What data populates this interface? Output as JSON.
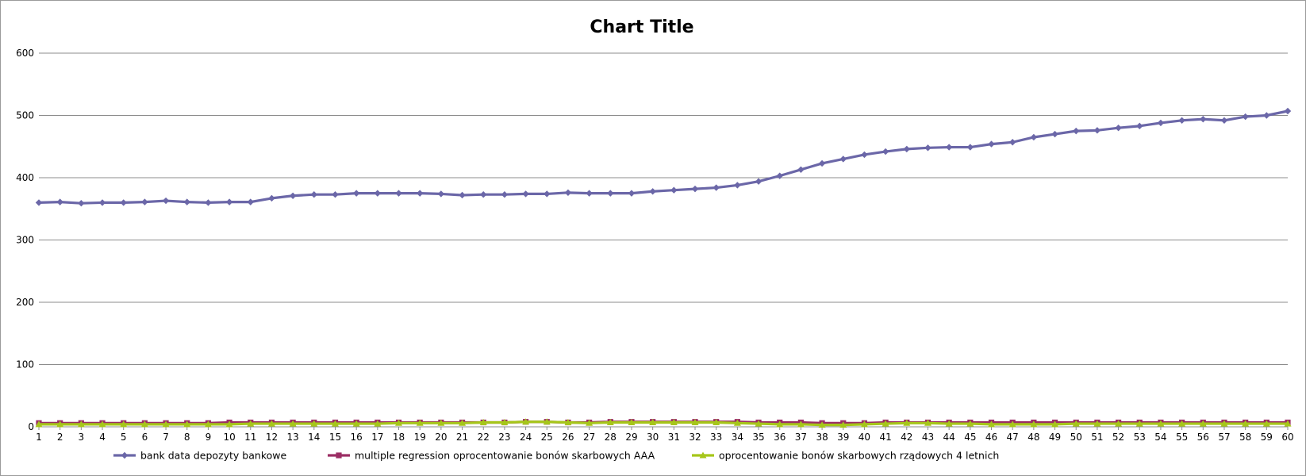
{
  "chart_data": {
    "type": "line",
    "title": "Chart Title",
    "xlabel": "",
    "ylabel": "",
    "ylim": [
      0,
      600
    ],
    "yticks": [
      0,
      100,
      200,
      300,
      400,
      500,
      600
    ],
    "grid": true,
    "legend_position": "bottom",
    "x": [
      1,
      2,
      3,
      4,
      5,
      6,
      7,
      8,
      9,
      10,
      11,
      12,
      13,
      14,
      15,
      16,
      17,
      18,
      19,
      20,
      21,
      22,
      23,
      24,
      25,
      26,
      27,
      28,
      29,
      30,
      31,
      32,
      33,
      34,
      35,
      36,
      37,
      38,
      39,
      40,
      41,
      42,
      43,
      44,
      45,
      46,
      47,
      48,
      49,
      50,
      51,
      52,
      53,
      54,
      55,
      56,
      57,
      58,
      59,
      60
    ],
    "series": [
      {
        "name": "bank data  depozyty bankowe",
        "color": "#6b67a8",
        "marker": "diamond",
        "values": [
          360,
          361,
          359,
          360,
          360,
          361,
          363,
          361,
          360,
          361,
          361,
          367,
          371,
          373,
          373,
          375,
          375,
          375,
          375,
          374,
          372,
          373,
          373,
          374,
          374,
          376,
          375,
          375,
          375,
          378,
          380,
          382,
          384,
          388,
          394,
          403,
          413,
          423,
          430,
          437,
          442,
          446,
          448,
          449,
          449,
          454,
          457,
          465,
          470,
          475,
          476,
          480,
          483,
          488,
          492,
          494,
          492,
          498,
          500,
          507
        ]
      },
      {
        "name": "multiple regression oprocentowanie bonów skarbowych AAA",
        "color": "#9b2d64",
        "marker": "square",
        "values": [
          6,
          6,
          6,
          6,
          6,
          6,
          6,
          6,
          6,
          7,
          7,
          7,
          7,
          7,
          7,
          7,
          7,
          7,
          7,
          7,
          7,
          7,
          7,
          8,
          8,
          7,
          7,
          8,
          8,
          8,
          8,
          8,
          8,
          8,
          7,
          7,
          7,
          6,
          6,
          6,
          7,
          7,
          7,
          7,
          7,
          7,
          7,
          7,
          7,
          7,
          7,
          7,
          7,
          7,
          7,
          7,
          7,
          7,
          7,
          7
        ]
      },
      {
        "name": "oprocentowanie bonów skarbowych rządowych 4 letnich",
        "color": "#a6c61a",
        "marker": "triangle",
        "values": [
          4,
          4,
          4,
          4,
          4,
          4,
          4,
          4,
          4,
          4,
          5,
          5,
          5,
          5,
          5,
          5,
          5,
          6,
          6,
          6,
          6,
          7,
          7,
          8,
          8,
          7,
          6,
          7,
          7,
          7,
          7,
          7,
          7,
          6,
          5,
          4,
          4,
          3,
          3,
          4,
          5,
          6,
          6,
          5,
          5,
          4,
          4,
          4,
          4,
          5,
          5,
          5,
          5,
          5,
          5,
          5,
          5,
          5,
          5,
          5
        ]
      }
    ]
  }
}
